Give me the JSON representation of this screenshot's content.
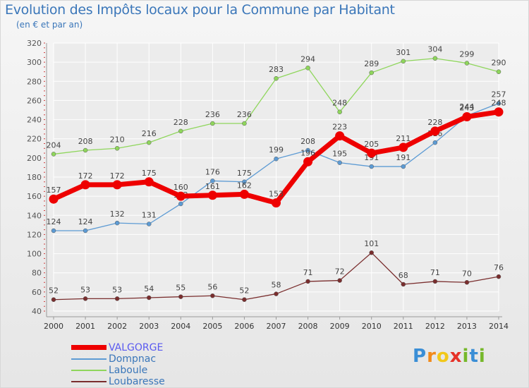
{
  "title": "Evolution des Impôts locaux pour la Commune par Habitant",
  "subtitle": "(en € et par an)",
  "logo": {
    "letters": [
      "P",
      "r",
      "o",
      "x",
      "i",
      "t",
      "i"
    ],
    "colors": [
      "#3a8ed6",
      "#f28a1a",
      "#f2c81a",
      "#e63228",
      "#76b82a",
      "#3a8ed6",
      "#76b82a"
    ]
  },
  "chart_data": {
    "type": "line",
    "title": "Evolution des Impôts locaux pour la Commune par Habitant",
    "subtitle": "(en € et par an)",
    "xlabel": "",
    "ylabel": "",
    "x": [
      "2000",
      "2001",
      "2002",
      "2003",
      "2004",
      "2005",
      "2006",
      "2007",
      "2008",
      "2009",
      "2010",
      "2011",
      "2012",
      "2013",
      "2014"
    ],
    "ylim": [
      40,
      320
    ],
    "yticks": [
      40,
      60,
      80,
      100,
      120,
      140,
      160,
      180,
      200,
      220,
      240,
      260,
      280,
      300,
      320
    ],
    "grid": true,
    "legend_position": "bottom-left",
    "series": [
      {
        "name": "Dompnac",
        "color": "#5d9bd4",
        "values": [
          124,
          124,
          132,
          131,
          152,
          176,
          175,
          199,
          208,
          195,
          191,
          191,
          216,
          244,
          257
        ]
      },
      {
        "name": "Laboule",
        "color": "#8fd65c",
        "values": [
          204,
          208,
          210,
          216,
          228,
          236,
          236,
          283,
          294,
          248,
          289,
          301,
          304,
          299,
          290
        ]
      },
      {
        "name": "Loubaresse",
        "color": "#7a2e2e",
        "values": [
          52,
          53,
          53,
          54,
          55,
          56,
          52,
          58,
          71,
          72,
          101,
          68,
          71,
          70,
          76
        ]
      },
      {
        "name": "VALGORGE",
        "color": "#ee0000",
        "highlight": true,
        "values": [
          157,
          172,
          172,
          175,
          160,
          161,
          162,
          153,
          196,
          223,
          205,
          211,
          228,
          243,
          248
        ]
      }
    ]
  }
}
